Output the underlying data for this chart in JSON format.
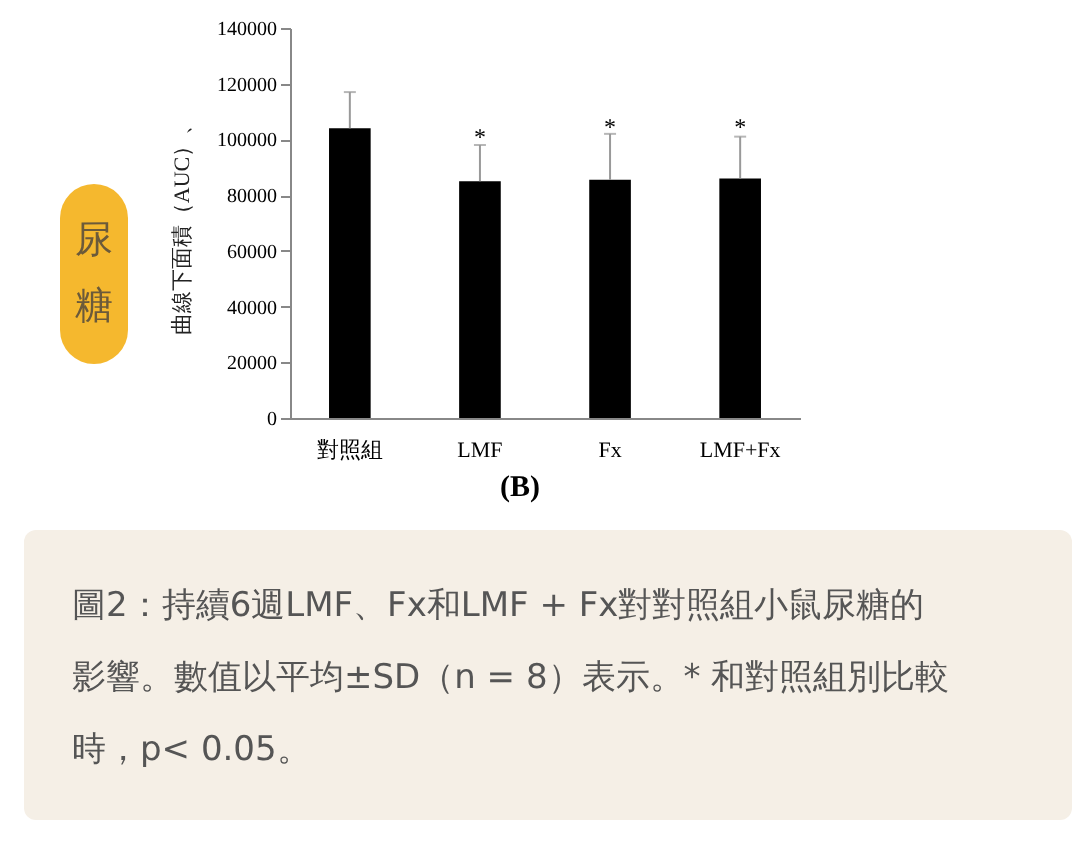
{
  "chart_data": {
    "type": "bar",
    "ylabel": "曲線下面積（AUC）、",
    "categories": [
      "對照組",
      "LMF",
      "Fx",
      "LMF+Fx"
    ],
    "values": [
      104000,
      85000,
      85500,
      86000
    ],
    "errors": [
      [
        104000,
        117000
      ],
      [
        85000,
        98000
      ],
      [
        85500,
        102000
      ],
      [
        86000,
        101000
      ]
    ],
    "color": "#000000",
    "ylim": [
      0,
      140000
    ],
    "yticks": [
      0,
      20000,
      40000,
      60000,
      80000,
      100000,
      120000,
      140000
    ],
    "grid": false,
    "annotations": [
      "尿糖",
      "(B)",
      "圖2：持續6週LMF、Fx和LMF + Fx對對照組小鼠尿糖的影響。數值以平均±SD（n = 8）表示。* 和對照組別比較時，p< 0.05。",
      {
        "text": "*",
        "x": "LMF",
        "y": 101000
      },
      {
        "text": "*",
        "x": "Fx",
        "y": 104500
      },
      {
        "text": "*",
        "x": "LMF+Fx",
        "y": 104500
      }
    ]
  }
}
